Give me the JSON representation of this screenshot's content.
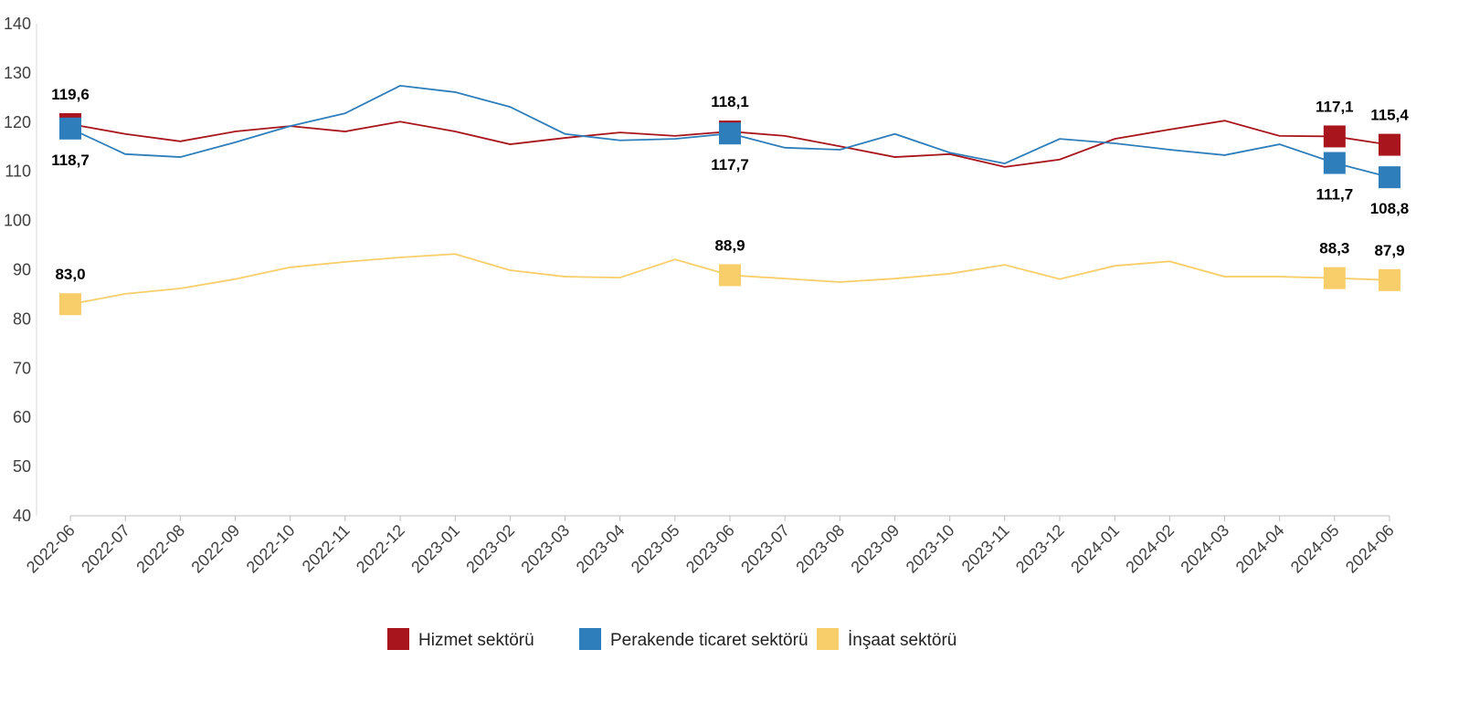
{
  "chart_data": {
    "type": "line",
    "title": "",
    "xlabel": "",
    "ylabel": "",
    "ylim": [
      40,
      140
    ],
    "yticks": [
      40,
      50,
      60,
      70,
      80,
      90,
      100,
      110,
      120,
      130,
      140
    ],
    "legend_position": "bottom",
    "categories": [
      "2022-06",
      "2022-07",
      "2022-08",
      "2022-09",
      "2022-10",
      "2022-11",
      "2022-12",
      "2023-01",
      "2023-02",
      "2023-03",
      "2023-04",
      "2023-05",
      "2023-06",
      "2023-07",
      "2023-08",
      "2023-09",
      "2023-10",
      "2023-11",
      "2023-12",
      "2024-01",
      "2024-02",
      "2024-03",
      "2024-04",
      "2024-05",
      "2024-06"
    ],
    "marked_indices": [
      0,
      12,
      23,
      24
    ],
    "series": [
      {
        "name": "Hizmet sektörü",
        "color": "#A8151C",
        "label_side": "above",
        "values": [
          119.6,
          117.6,
          116.1,
          118.1,
          119.2,
          118.1,
          120.1,
          118.1,
          115.5,
          116.8,
          117.9,
          117.2,
          118.1,
          117.2,
          115.1,
          112.9,
          113.5,
          110.9,
          112.4,
          116.6,
          118.5,
          120.3,
          117.2,
          117.1,
          115.4
        ],
        "labels": {
          "0": "119,6",
          "12": "118,1",
          "23": "117,1",
          "24": "115,4"
        }
      },
      {
        "name": "Perakende ticaret sektörü",
        "color": "#2E7EBB",
        "label_side": "below",
        "values": [
          118.7,
          113.5,
          112.9,
          115.9,
          119.2,
          121.8,
          127.4,
          126.1,
          123.1,
          117.6,
          116.3,
          116.6,
          117.7,
          114.8,
          114.4,
          117.6,
          113.8,
          111.6,
          116.6,
          115.7,
          114.4,
          113.3,
          115.5,
          111.7,
          108.8
        ],
        "labels": {
          "0": "118,7",
          "12": "117,7",
          "23": "111,7",
          "24": "108,8"
        }
      },
      {
        "name": "İnşaat sektörü",
        "color": "#F7CE6A",
        "label_side": "above",
        "values": [
          83.0,
          85.1,
          86.2,
          88.1,
          90.5,
          91.6,
          92.5,
          93.2,
          89.9,
          88.6,
          88.4,
          92.1,
          88.9,
          88.2,
          87.5,
          88.2,
          89.2,
          91.0,
          88.1,
          90.8,
          91.7,
          88.6,
          88.6,
          88.3,
          87.9
        ],
        "labels": {
          "0": "83,0",
          "12": "88,9",
          "23": "88,3",
          "24": "87,9"
        }
      }
    ]
  }
}
